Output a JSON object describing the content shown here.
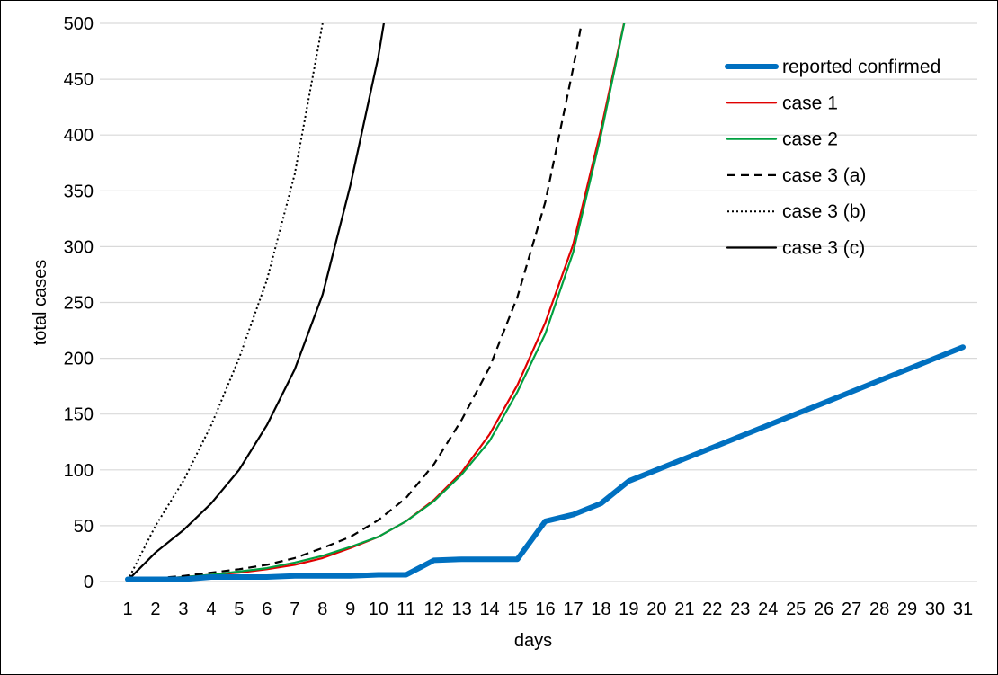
{
  "chart_data": {
    "type": "line",
    "title": "",
    "xlabel": "days",
    "ylabel": "total cases",
    "xlim": [
      1,
      31
    ],
    "ylim": [
      0,
      500
    ],
    "y_ticks": [
      0,
      50,
      100,
      150,
      200,
      250,
      300,
      350,
      400,
      450,
      500
    ],
    "x_ticks": [
      1,
      2,
      3,
      4,
      5,
      6,
      7,
      8,
      9,
      10,
      11,
      12,
      13,
      14,
      15,
      16,
      17,
      18,
      19,
      20,
      21,
      22,
      23,
      24,
      25,
      26,
      27,
      28,
      29,
      30,
      31
    ],
    "grid": "horizontal",
    "legend_position": "top-right",
    "series": [
      {
        "name": "reported confirmed",
        "color": "#0070C0",
        "style": "solid-thick",
        "points": [
          [
            1,
            2
          ],
          [
            2,
            2
          ],
          [
            3,
            2
          ],
          [
            4,
            4
          ],
          [
            5,
            4
          ],
          [
            6,
            4
          ],
          [
            7,
            5
          ],
          [
            8,
            5
          ],
          [
            9,
            5
          ],
          [
            10,
            6
          ],
          [
            11,
            6
          ],
          [
            12,
            19
          ],
          [
            13,
            20
          ],
          [
            14,
            20
          ],
          [
            15,
            20
          ],
          [
            16,
            54
          ],
          [
            17,
            60
          ],
          [
            18,
            70
          ],
          [
            19,
            90
          ],
          [
            20,
            100
          ],
          [
            21,
            110
          ],
          [
            22,
            120
          ],
          [
            23,
            130
          ],
          [
            24,
            140
          ],
          [
            25,
            150
          ],
          [
            26,
            160
          ],
          [
            27,
            170
          ],
          [
            28,
            180
          ],
          [
            29,
            190
          ],
          [
            30,
            200
          ],
          [
            31,
            210
          ]
        ]
      },
      {
        "name": "case 1",
        "color": "#E00000",
        "style": "solid",
        "points": [
          [
            1,
            1
          ],
          [
            2,
            2
          ],
          [
            3,
            4
          ],
          [
            4,
            6
          ],
          [
            5,
            8
          ],
          [
            6,
            11
          ],
          [
            7,
            15
          ],
          [
            8,
            21
          ],
          [
            9,
            30
          ],
          [
            10,
            40
          ],
          [
            11,
            54
          ],
          [
            12,
            73
          ],
          [
            13,
            98
          ],
          [
            14,
            132
          ],
          [
            15,
            176
          ],
          [
            16,
            232
          ],
          [
            17,
            302
          ],
          [
            18,
            405
          ],
          [
            19,
            520
          ]
        ]
      },
      {
        "name": "case 2",
        "color": "#00A040",
        "style": "solid",
        "points": [
          [
            1,
            1
          ],
          [
            2,
            2
          ],
          [
            3,
            4
          ],
          [
            4,
            6
          ],
          [
            5,
            9
          ],
          [
            6,
            12
          ],
          [
            7,
            17
          ],
          [
            8,
            23
          ],
          [
            9,
            31
          ],
          [
            10,
            40
          ],
          [
            11,
            54
          ],
          [
            12,
            72
          ],
          [
            13,
            96
          ],
          [
            14,
            126
          ],
          [
            15,
            170
          ],
          [
            16,
            222
          ],
          [
            17,
            295
          ],
          [
            18,
            400
          ],
          [
            19,
            520
          ]
        ]
      },
      {
        "name": "case 3 (a)",
        "color": "#000000",
        "style": "dashed",
        "points": [
          [
            1,
            1
          ],
          [
            2,
            3
          ],
          [
            3,
            5
          ],
          [
            4,
            8
          ],
          [
            5,
            11
          ],
          [
            6,
            15
          ],
          [
            7,
            21
          ],
          [
            8,
            30
          ],
          [
            9,
            40
          ],
          [
            10,
            55
          ],
          [
            11,
            75
          ],
          [
            12,
            105
          ],
          [
            13,
            145
          ],
          [
            14,
            192
          ],
          [
            15,
            255
          ],
          [
            16,
            340
          ],
          [
            17,
            460
          ],
          [
            17.3,
            500
          ]
        ]
      },
      {
        "name": "case 3 (b)",
        "color": "#000000",
        "style": "dotted",
        "points": [
          [
            1,
            1
          ],
          [
            2,
            50
          ],
          [
            3,
            90
          ],
          [
            4,
            140
          ],
          [
            5,
            200
          ],
          [
            6,
            270
          ],
          [
            7,
            365
          ],
          [
            8,
            500
          ]
        ]
      },
      {
        "name": "case 3 (c)",
        "color": "#000000",
        "style": "solid",
        "points": [
          [
            1,
            1
          ],
          [
            2,
            26
          ],
          [
            3,
            46
          ],
          [
            4,
            70
          ],
          [
            5,
            100
          ],
          [
            6,
            140
          ],
          [
            7,
            190
          ],
          [
            8,
            257
          ],
          [
            9,
            355
          ],
          [
            10,
            470
          ],
          [
            10.2,
            500
          ]
        ]
      }
    ]
  }
}
